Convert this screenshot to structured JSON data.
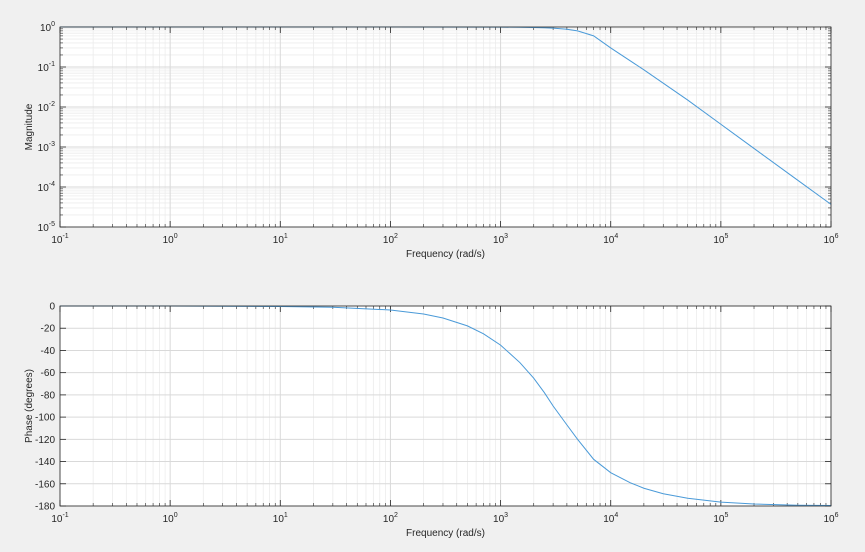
{
  "chart_data": [
    {
      "type": "line",
      "title": "",
      "xlabel": "Frequency (rad/s)",
      "ylabel": "Magnitude",
      "xscale": "log",
      "yscale": "log",
      "xlim": [
        0.1,
        1000000
      ],
      "ylim": [
        1e-05,
        1
      ],
      "grid": true,
      "x_ticks": [
        0.1,
        1,
        10,
        100,
        1000,
        10000,
        100000,
        1000000
      ],
      "x_tick_labels": [
        {
          "base": "10",
          "exp": "-1"
        },
        {
          "base": "10",
          "exp": "0"
        },
        {
          "base": "10",
          "exp": "1"
        },
        {
          "base": "10",
          "exp": "2"
        },
        {
          "base": "10",
          "exp": "3"
        },
        {
          "base": "10",
          "exp": "4"
        },
        {
          "base": "10",
          "exp": "5"
        },
        {
          "base": "10",
          "exp": "6"
        }
      ],
      "y_ticks": [
        1e-05,
        0.0001,
        0.001,
        0.01,
        0.1,
        1
      ],
      "y_tick_labels": [
        {
          "base": "10",
          "exp": "-5"
        },
        {
          "base": "10",
          "exp": "-4"
        },
        {
          "base": "10",
          "exp": "-3"
        },
        {
          "base": "10",
          "exp": "-2"
        },
        {
          "base": "10",
          "exp": "-1"
        },
        {
          "base": "10",
          "exp": "0"
        }
      ],
      "series": [
        {
          "color": "#4a9ad8",
          "x": [
            0.1,
            1,
            10,
            100,
            1000,
            1500,
            2000,
            2500,
            3000,
            4000,
            5000,
            7000,
            10000,
            20000,
            50000,
            100000,
            200000,
            500000,
            1000000
          ],
          "y": [
            1,
            1,
            1,
            1,
            0.993,
            0.984,
            0.972,
            0.956,
            0.935,
            0.878,
            0.8,
            0.6,
            0.3,
            0.085,
            0.0149,
            0.0037,
            0.00092,
            0.000147,
            3.68e-05
          ]
        }
      ]
    },
    {
      "type": "line",
      "title": "",
      "xlabel": "Frequency (rad/s)",
      "ylabel": "Phase (degrees)",
      "xscale": "log",
      "yscale": "linear",
      "xlim": [
        0.1,
        1000000
      ],
      "ylim": [
        -180,
        0
      ],
      "grid": true,
      "x_ticks": [
        0.1,
        1,
        10,
        100,
        1000,
        10000,
        100000,
        1000000
      ],
      "x_tick_labels": [
        {
          "base": "10",
          "exp": "-1"
        },
        {
          "base": "10",
          "exp": "0"
        },
        {
          "base": "10",
          "exp": "1"
        },
        {
          "base": "10",
          "exp": "2"
        },
        {
          "base": "10",
          "exp": "3"
        },
        {
          "base": "10",
          "exp": "4"
        },
        {
          "base": "10",
          "exp": "5"
        },
        {
          "base": "10",
          "exp": "6"
        }
      ],
      "y_ticks": [
        -180,
        -160,
        -140,
        -120,
        -100,
        -80,
        -60,
        -40,
        -20,
        0
      ],
      "y_tick_labels": [
        "-180",
        "-160",
        "-140",
        "-120",
        "-100",
        "-80",
        "-60",
        "-40",
        "-20",
        "0"
      ],
      "series": [
        {
          "color": "#4a9ad8",
          "x": [
            0.1,
            1,
            10,
            30,
            100,
            200,
            300,
            500,
            700,
            1000,
            1500,
            2000,
            2500,
            3000,
            4000,
            5000,
            7000,
            10000,
            15000,
            20000,
            30000,
            50000,
            100000,
            200000,
            500000,
            1000000
          ],
          "y": [
            0,
            0,
            -0.4,
            -1.1,
            -3.6,
            -7.2,
            -10.8,
            -17.9,
            -25,
            -35.2,
            -51,
            -65,
            -78,
            -90,
            -107,
            -120,
            -138,
            -150,
            -159,
            -164,
            -169,
            -173,
            -176.5,
            -178.2,
            -179.3,
            -179.6
          ]
        }
      ]
    }
  ]
}
